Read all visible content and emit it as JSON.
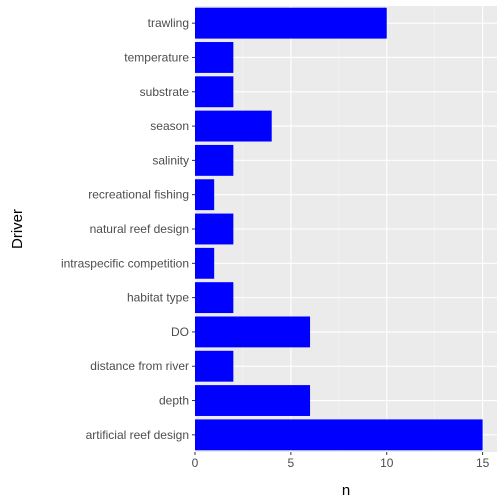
{
  "chart_data": {
    "type": "bar",
    "orientation": "horizontal",
    "xlabel": "n",
    "ylabel": "Driver",
    "categories": [
      "artificial reef design",
      "depth",
      "distance from river",
      "DO",
      "habitat type",
      "intraspecific competition",
      "natural reef design",
      "recreational fishing",
      "salinity",
      "season",
      "substrate",
      "temperature",
      "trawling"
    ],
    "values": [
      15,
      6,
      2,
      6,
      2,
      1,
      2,
      1,
      2,
      4,
      2,
      2,
      10
    ],
    "xlim": [
      0,
      15.75
    ],
    "xticks": [
      0,
      5,
      10,
      15
    ],
    "grid": true,
    "legend": "none",
    "colors": {
      "bar": "#0000ff",
      "panel": "#ebebeb",
      "grid_major": "#ffffff",
      "grid_minor": "#f5f5f5"
    }
  }
}
